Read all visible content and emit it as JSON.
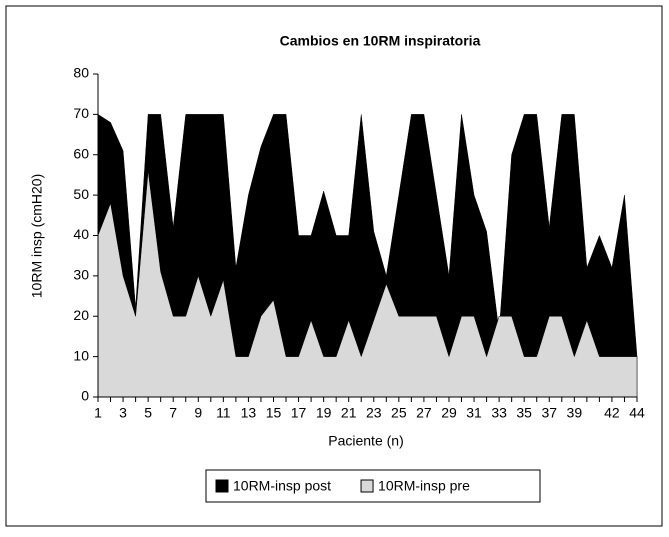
{
  "chart_data": {
    "type": "area",
    "title": "Cambios en 10RM inspiratoria",
    "x_label": "Paciente (n)",
    "y_label": "10RM insp (cmH20)",
    "categories": [
      "1",
      null,
      "3",
      null,
      "5",
      null,
      "7",
      null,
      "9",
      null,
      "11",
      null,
      "13",
      null,
      "15",
      null,
      "17",
      null,
      "19",
      null,
      "21",
      null,
      "23",
      null,
      "25",
      null,
      "27",
      null,
      "29",
      null,
      "31",
      null,
      "33",
      null,
      "35",
      null,
      "37",
      null,
      "39",
      null,
      null,
      "42",
      null,
      "44"
    ],
    "series": [
      {
        "name": "10RM-insp post",
        "color": "#000000",
        "values": [
          70,
          68,
          61,
          22,
          70,
          70,
          42,
          70,
          70,
          70,
          70,
          32,
          50,
          62,
          70,
          70,
          40,
          40,
          51,
          40,
          40,
          70,
          41,
          30,
          50,
          70,
          70,
          50,
          30,
          70,
          50,
          41,
          16,
          60,
          70,
          70,
          42,
          70,
          70,
          32,
          40,
          32,
          50,
          10
        ]
      },
      {
        "name": "10RM-insp pre",
        "color": "#d9d9d9",
        "values": [
          40,
          48,
          30,
          20,
          56,
          31,
          20,
          20,
          30,
          20,
          29,
          10,
          10,
          20,
          24,
          10,
          10,
          19,
          10,
          10,
          19,
          10,
          19,
          28,
          20,
          20,
          20,
          20,
          10,
          20,
          20,
          10,
          20,
          20,
          10,
          10,
          20,
          20,
          10,
          19,
          10,
          10,
          10,
          10
        ]
      }
    ],
    "ylim": [
      0,
      80
    ],
    "yticks": [
      0,
      10,
      20,
      30,
      40,
      50,
      60,
      70,
      80
    ],
    "grid": false,
    "legend": "bottom"
  }
}
